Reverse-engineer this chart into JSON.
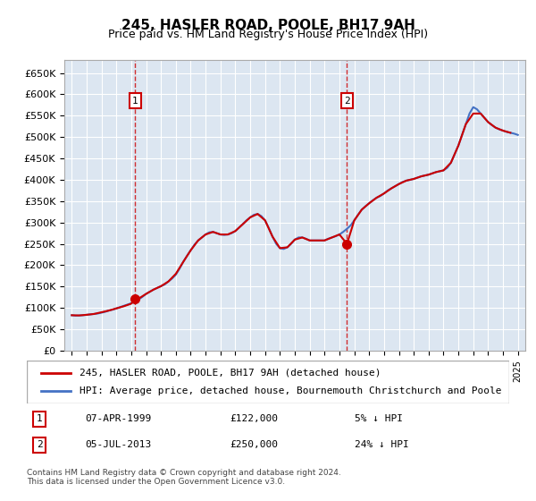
{
  "title": "245, HASLER ROAD, POOLE, BH17 9AH",
  "subtitle": "Price paid vs. HM Land Registry's House Price Index (HPI)",
  "legend_line1": "245, HASLER ROAD, POOLE, BH17 9AH (detached house)",
  "legend_line2": "HPI: Average price, detached house, Bournemouth Christchurch and Poole",
  "footnote": "Contains HM Land Registry data © Crown copyright and database right 2024.\nThis data is licensed under the Open Government Licence v3.0.",
  "sale1_label": "1",
  "sale1_date": "07-APR-1999",
  "sale1_price": "£122,000",
  "sale1_hpi": "5% ↓ HPI",
  "sale2_label": "2",
  "sale2_date": "05-JUL-2013",
  "sale2_price": "£250,000",
  "sale2_hpi": "24% ↓ HPI",
  "sale1_x": 1999.27,
  "sale1_y": 122000,
  "sale2_x": 2013.51,
  "sale2_y": 250000,
  "ylim": [
    0,
    680000
  ],
  "xlim": [
    1994.5,
    2025.5
  ],
  "yticks": [
    0,
    50000,
    100000,
    150000,
    200000,
    250000,
    300000,
    350000,
    400000,
    450000,
    500000,
    550000,
    600000,
    650000
  ],
  "ytick_labels": [
    "£0",
    "£50K",
    "£100K",
    "£150K",
    "£200K",
    "£250K",
    "£300K",
    "£350K",
    "£400K",
    "£450K",
    "£500K",
    "£550K",
    "£600K",
    "£650K"
  ],
  "xticks": [
    1995,
    1996,
    1997,
    1998,
    1999,
    2000,
    2001,
    2002,
    2003,
    2004,
    2005,
    2006,
    2007,
    2008,
    2009,
    2010,
    2011,
    2012,
    2013,
    2014,
    2015,
    2016,
    2017,
    2018,
    2019,
    2020,
    2021,
    2022,
    2023,
    2024,
    2025
  ],
  "bg_color": "#dce6f1",
  "red_color": "#cc0000",
  "blue_color": "#4472c4",
  "hpi_data_x": [
    1995.0,
    1995.25,
    1995.5,
    1995.75,
    1996.0,
    1996.25,
    1996.5,
    1996.75,
    1997.0,
    1997.25,
    1997.5,
    1997.75,
    1998.0,
    1998.25,
    1998.5,
    1998.75,
    1999.0,
    1999.25,
    1999.5,
    1999.75,
    2000.0,
    2000.25,
    2000.5,
    2000.75,
    2001.0,
    2001.25,
    2001.5,
    2001.75,
    2002.0,
    2002.25,
    2002.5,
    2002.75,
    2003.0,
    2003.25,
    2003.5,
    2003.75,
    2004.0,
    2004.25,
    2004.5,
    2004.75,
    2005.0,
    2005.25,
    2005.5,
    2005.75,
    2006.0,
    2006.25,
    2006.5,
    2006.75,
    2007.0,
    2007.25,
    2007.5,
    2007.75,
    2008.0,
    2008.25,
    2008.5,
    2008.75,
    2009.0,
    2009.25,
    2009.5,
    2009.75,
    2010.0,
    2010.25,
    2010.5,
    2010.75,
    2011.0,
    2011.25,
    2011.5,
    2011.75,
    2012.0,
    2012.25,
    2012.5,
    2012.75,
    2013.0,
    2013.25,
    2013.5,
    2013.75,
    2014.0,
    2014.25,
    2014.5,
    2014.75,
    2015.0,
    2015.25,
    2015.5,
    2015.75,
    2016.0,
    2016.25,
    2016.5,
    2016.75,
    2017.0,
    2017.25,
    2017.5,
    2017.75,
    2018.0,
    2018.25,
    2018.5,
    2018.75,
    2019.0,
    2019.25,
    2019.5,
    2019.75,
    2020.0,
    2020.25,
    2020.5,
    2020.75,
    2021.0,
    2021.25,
    2021.5,
    2021.75,
    2022.0,
    2022.25,
    2022.5,
    2022.75,
    2023.0,
    2023.25,
    2023.5,
    2023.75,
    2024.0,
    2024.25,
    2024.5,
    2024.75,
    2025.0
  ],
  "hpi_data_y": [
    83000,
    82000,
    82500,
    83000,
    84000,
    85000,
    86000,
    87000,
    89000,
    91000,
    94000,
    96000,
    99000,
    102000,
    105000,
    108000,
    111000,
    115000,
    120000,
    126000,
    133000,
    138000,
    143000,
    147000,
    151000,
    155000,
    162000,
    169000,
    178000,
    192000,
    208000,
    222000,
    235000,
    248000,
    258000,
    265000,
    272000,
    277000,
    278000,
    275000,
    272000,
    271000,
    272000,
    275000,
    280000,
    288000,
    296000,
    305000,
    312000,
    318000,
    320000,
    315000,
    305000,
    287000,
    267000,
    250000,
    240000,
    238000,
    242000,
    250000,
    260000,
    265000,
    265000,
    262000,
    258000,
    258000,
    258000,
    258000,
    258000,
    262000,
    265000,
    268000,
    272000,
    278000,
    285000,
    293000,
    305000,
    318000,
    330000,
    338000,
    345000,
    352000,
    358000,
    362000,
    368000,
    375000,
    380000,
    385000,
    390000,
    395000,
    398000,
    400000,
    402000,
    405000,
    408000,
    410000,
    412000,
    415000,
    418000,
    420000,
    422000,
    428000,
    440000,
    460000,
    480000,
    505000,
    530000,
    555000,
    570000,
    565000,
    555000,
    545000,
    535000,
    528000,
    522000,
    518000,
    515000,
    512000,
    510000,
    508000,
    505000
  ],
  "property_data_x": [
    1995.0,
    1995.5,
    1996.0,
    1996.5,
    1997.0,
    1997.5,
    1998.0,
    1998.5,
    1999.0,
    1999.27,
    1999.5,
    2000.0,
    2000.5,
    2001.0,
    2001.5,
    2002.0,
    2002.5,
    2003.0,
    2003.5,
    2004.0,
    2004.5,
    2005.0,
    2005.5,
    2006.0,
    2006.5,
    2007.0,
    2007.5,
    2008.0,
    2008.5,
    2009.0,
    2009.5,
    2010.0,
    2010.5,
    2011.0,
    2011.5,
    2012.0,
    2012.5,
    2013.0,
    2013.51,
    2014.0,
    2014.5,
    2015.0,
    2015.5,
    2016.0,
    2016.5,
    2017.0,
    2017.5,
    2018.0,
    2018.5,
    2019.0,
    2019.5,
    2020.0,
    2020.5,
    2021.0,
    2021.5,
    2022.0,
    2022.5,
    2023.0,
    2023.5,
    2024.0,
    2024.5
  ],
  "property_data_y": [
    83000,
    82500,
    84000,
    86000,
    90000,
    94000,
    99000,
    104000,
    110000,
    122000,
    122000,
    133000,
    143000,
    151000,
    162000,
    180000,
    208000,
    235000,
    258000,
    272000,
    278000,
    272000,
    272000,
    280000,
    296000,
    312000,
    320000,
    305000,
    267000,
    240000,
    242000,
    260000,
    265000,
    258000,
    258000,
    258000,
    265000,
    272000,
    250000,
    305000,
    330000,
    345000,
    358000,
    368000,
    380000,
    390000,
    398000,
    402000,
    408000,
    412000,
    418000,
    422000,
    440000,
    480000,
    530000,
    555000,
    555000,
    535000,
    522000,
    515000,
    510000
  ]
}
